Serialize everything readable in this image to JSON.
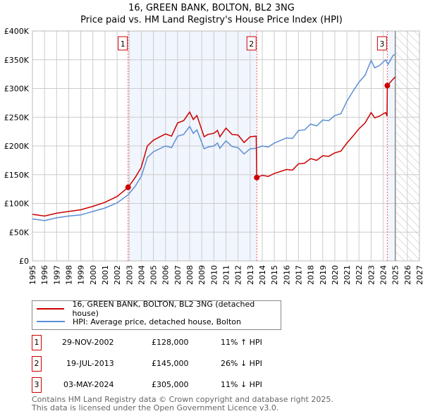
{
  "chart_data": {
    "type": "line",
    "title": "16, GREEN BANK, BOLTON, BL2 3NG",
    "subtitle": "Price paid vs. HM Land Registry's House Price Index (HPI)",
    "xlim": [
      1995,
      2027
    ],
    "ylim": [
      0,
      400000
    ],
    "x_ticks": [
      "1995",
      "1996",
      "1997",
      "1998",
      "1999",
      "2000",
      "2001",
      "2002",
      "2003",
      "2004",
      "2005",
      "2006",
      "2007",
      "2008",
      "2009",
      "2010",
      "2011",
      "2012",
      "2013",
      "2014",
      "2015",
      "2016",
      "2017",
      "2018",
      "2019",
      "2020",
      "2021",
      "2022",
      "2023",
      "2024",
      "2025",
      "2026",
      "2027"
    ],
    "y_ticks": [
      {
        "v": 0,
        "label": "£0"
      },
      {
        "v": 50000,
        "label": "£50K"
      },
      {
        "v": 100000,
        "label": "£100K"
      },
      {
        "v": 150000,
        "label": "£150K"
      },
      {
        "v": 200000,
        "label": "£200K"
      },
      {
        "v": 250000,
        "label": "£250K"
      },
      {
        "v": 300000,
        "label": "£300K"
      },
      {
        "v": 350000,
        "label": "£350K"
      },
      {
        "v": 400000,
        "label": "£400K"
      }
    ],
    "grid": true,
    "series": [
      {
        "name": "16, GREEN BANK, BOLTON, BL2 3NG (detached house)",
        "color": "#cc0000",
        "x": [
          1995,
          1996,
          1997,
          1998,
          1999,
          2000,
          2001,
          2002,
          2002.91,
          2003.5,
          2004,
          2004.5,
          2005,
          2006,
          2006.5,
          2007,
          2007.5,
          2008,
          2008.3,
          2008.6,
          2009.2,
          2009.5,
          2010,
          2010.3,
          2010.5,
          2011,
          2011.5,
          2012,
          2012.5,
          2013,
          2013.5,
          2013.55,
          2014,
          2014.5,
          2015,
          2016,
          2016.5,
          2017,
          2017.5,
          2018,
          2018.5,
          2019,
          2019.5,
          2020,
          2020.5,
          2021,
          2021.5,
          2022,
          2022.5,
          2023,
          2023.3,
          2023.7,
          2024,
          2024.2,
          2024.32,
          2024.34,
          2024.8,
          2025
        ],
        "y": [
          81000,
          78000,
          83000,
          86000,
          89000,
          95000,
          102000,
          112000,
          128000,
          145000,
          163000,
          200000,
          210000,
          221000,
          217000,
          240000,
          244000,
          259000,
          246000,
          253000,
          216000,
          220000,
          222000,
          227000,
          216000,
          231000,
          220000,
          219000,
          206000,
          216000,
          217000,
          145000,
          149000,
          147000,
          152000,
          159000,
          158000,
          169000,
          170000,
          178000,
          175000,
          183000,
          182000,
          188000,
          191000,
          205000,
          217000,
          230000,
          240000,
          258000,
          249000,
          252000,
          256000,
          258000,
          252000,
          305000,
          316000,
          320000
        ]
      },
      {
        "name": "HPI: Average price, detached house, Bolton",
        "color": "#5b8fd4",
        "x": [
          1995,
          1996,
          1997,
          1998,
          1999,
          2000,
          2001,
          2002,
          2002.91,
          2003.5,
          2004,
          2004.5,
          2005,
          2006,
          2006.5,
          2007,
          2007.5,
          2008,
          2008.3,
          2008.6,
          2009.2,
          2009.5,
          2010,
          2010.3,
          2010.5,
          2011,
          2011.5,
          2012,
          2012.5,
          2013,
          2013.5,
          2014,
          2014.5,
          2015,
          2016,
          2016.5,
          2017,
          2017.5,
          2018,
          2018.5,
          2019,
          2019.5,
          2020,
          2020.5,
          2021,
          2021.5,
          2022,
          2022.5,
          2023,
          2023.3,
          2023.7,
          2024,
          2024.2,
          2024.4,
          2024.8,
          2025
        ],
        "y": [
          73000,
          70000,
          75000,
          78000,
          80000,
          86000,
          92000,
          101000,
          115000,
          130000,
          147000,
          180000,
          190000,
          200000,
          197000,
          217000,
          220000,
          234000,
          222000,
          228000,
          195000,
          198000,
          200000,
          205000,
          196000,
          209000,
          199000,
          197000,
          186000,
          195000,
          196000,
          200000,
          198000,
          205000,
          214000,
          213000,
          227000,
          228000,
          238000,
          235000,
          245000,
          244000,
          253000,
          256000,
          278000,
          295000,
          311000,
          323000,
          349000,
          336000,
          340000,
          346000,
          350000,
          342000,
          357000,
          360000
        ]
      }
    ],
    "sales": [
      {
        "id": "1",
        "date": "29-NOV-2002",
        "x": 2002.91,
        "price": 128000,
        "price_label": "£128,000",
        "hpi_diff": "11% ↑ HPI"
      },
      {
        "id": "2",
        "date": "19-JUL-2013",
        "x": 2013.55,
        "price": 145000,
        "price_label": "£145,000",
        "hpi_diff": "26% ↓ HPI"
      },
      {
        "id": "3",
        "date": "03-MAY-2024",
        "x": 2024.34,
        "price": 305000,
        "price_label": "£305,000",
        "hpi_diff": "11% ↓ HPI"
      }
    ],
    "shaded_ranges": [
      [
        2002.91,
        2013.55
      ],
      [
        2024.34,
        2025
      ]
    ],
    "forecast_hatch": [
      2025,
      2027
    ],
    "legend": [
      "16, GREEN BANK, BOLTON, BL2 3NG (detached house)",
      "HPI: Average price, detached house, Bolton"
    ],
    "legend_position": "bottom"
  },
  "footer": {
    "line1": "Contains HM Land Registry data © Crown copyright and database right 2025.",
    "line2": "This data is licensed under the Open Government Licence v3.0."
  }
}
